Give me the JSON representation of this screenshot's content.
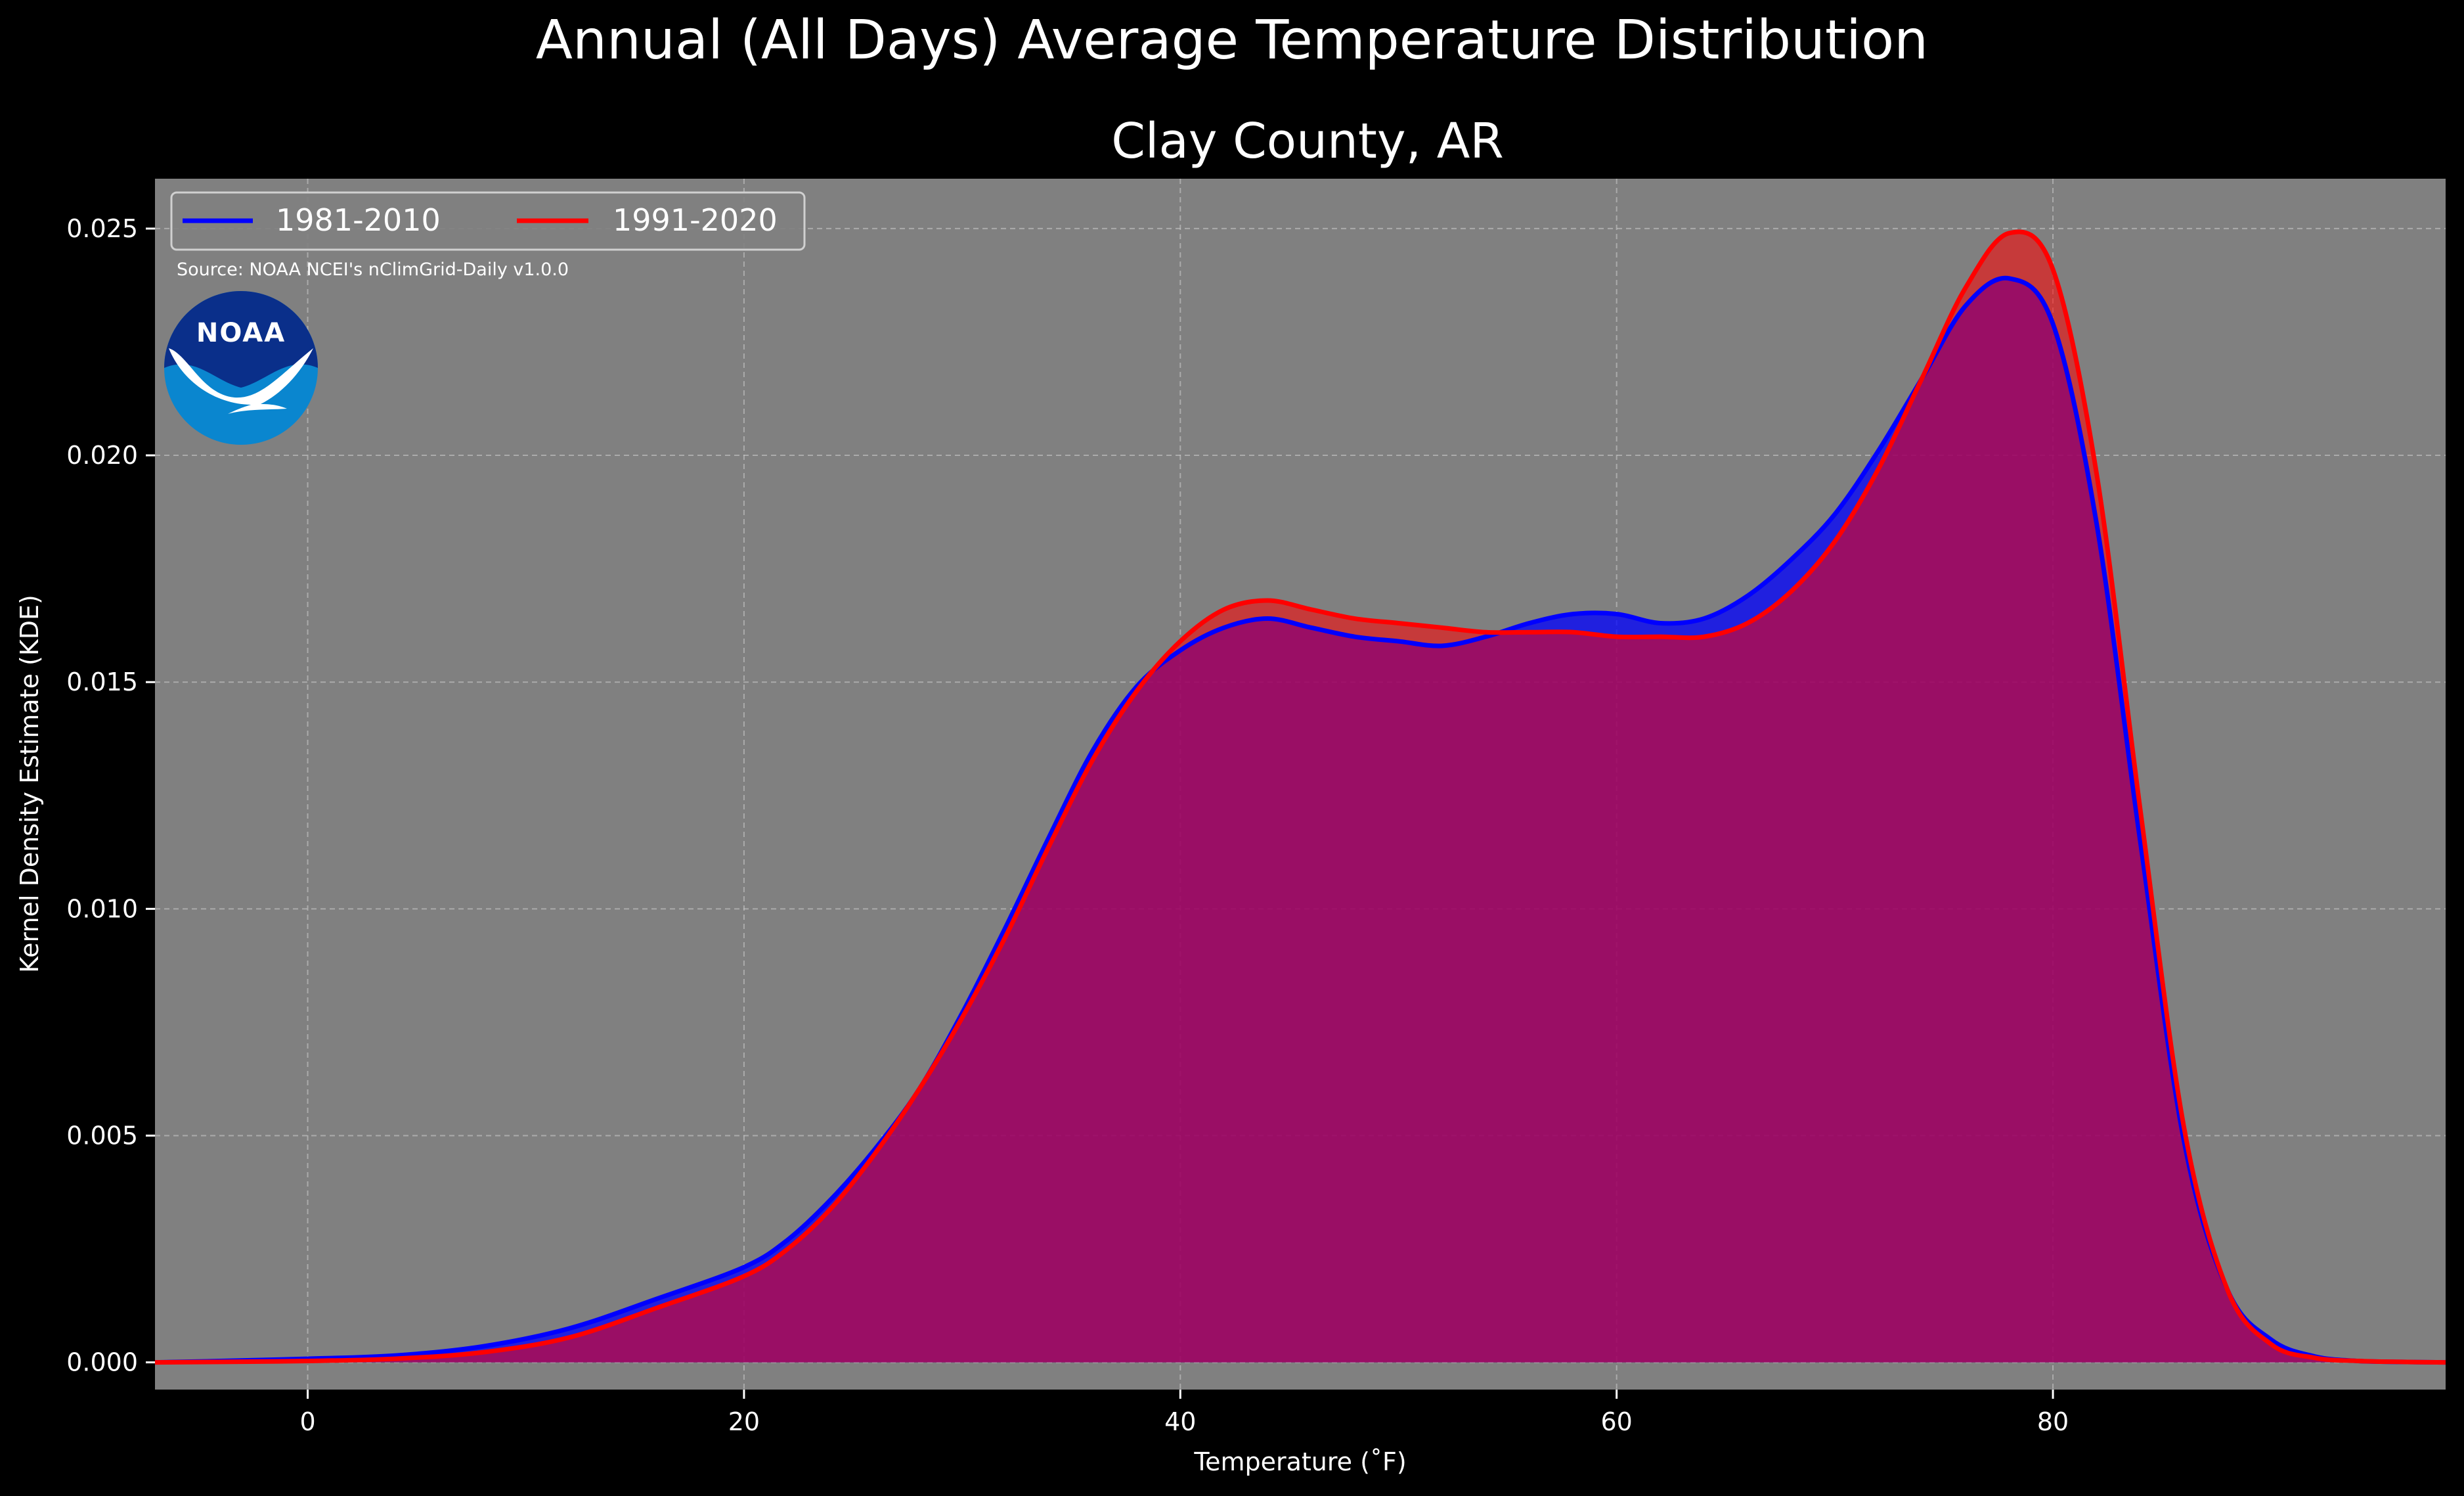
{
  "figure": {
    "suptitle": "Annual (All Days) Average Temperature Distribution",
    "subtitle": "Clay County, AR",
    "source_note": "Source: NOAA NCEI's nClimGrid-Daily v1.0.0",
    "logo_text": "NOAA"
  },
  "colors": {
    "background": "#000000",
    "plot_background": "#808080",
    "series_1981_2010": "#0000ff",
    "series_1991_2020": "#ff0000",
    "overlap_fill": "#9e1f5c",
    "logo_dark_blue": "#0a2f8a",
    "logo_light_blue": "#0a86cf"
  },
  "chart_data": {
    "type": "area",
    "title": "Clay County, AR",
    "xlabel": "Temperature ($^\\circ$F)",
    "xlabel_display": "Temperature (˚F)",
    "ylabel": "Kernel Density Estimate (KDE)",
    "xlim": [
      -7,
      98
    ],
    "ylim": [
      -0.0006,
      0.0261
    ],
    "xticks": [
      0,
      20,
      40,
      60,
      80
    ],
    "yticks": [
      0.0,
      0.005,
      0.01,
      0.015,
      0.02,
      0.025
    ],
    "ytick_labels": [
      "0.000",
      "0.005",
      "0.010",
      "0.015",
      "0.020",
      "0.025"
    ],
    "grid": true,
    "legend_position": "top-left",
    "series": [
      {
        "name": "1981-2010",
        "color": "#0000ff",
        "x": [
          -7,
          -4,
          0,
          4,
          8,
          12,
          16,
          20,
          22,
          24,
          26,
          28,
          30,
          32,
          34,
          36,
          38,
          40,
          42,
          44,
          46,
          48,
          50,
          52,
          54,
          56,
          58,
          60,
          62,
          64,
          66,
          68,
          70,
          72,
          74,
          76,
          78,
          80,
          82,
          84,
          86,
          88,
          90,
          92,
          94,
          96,
          98
        ],
        "y": [
          0.0,
          3e-05,
          8e-05,
          0.00015,
          0.00035,
          0.00075,
          0.0014,
          0.0021,
          0.0027,
          0.0036,
          0.0047,
          0.006,
          0.0077,
          0.0096,
          0.0116,
          0.0135,
          0.0149,
          0.0157,
          0.0162,
          0.0164,
          0.0162,
          0.016,
          0.0159,
          0.0158,
          0.016,
          0.0163,
          0.0165,
          0.0165,
          0.0163,
          0.0164,
          0.0169,
          0.0177,
          0.0187,
          0.0201,
          0.0217,
          0.0233,
          0.0239,
          0.0229,
          0.0185,
          0.0115,
          0.0049,
          0.0016,
          0.0005,
          0.00013,
          3e-05,
          1e-05,
          0.0
        ]
      },
      {
        "name": "1991-2020",
        "color": "#ff0000",
        "x": [
          -7,
          -4,
          0,
          4,
          8,
          12,
          16,
          20,
          22,
          24,
          26,
          28,
          30,
          32,
          34,
          36,
          38,
          40,
          42,
          44,
          46,
          48,
          50,
          52,
          54,
          56,
          58,
          60,
          62,
          64,
          66,
          68,
          70,
          72,
          74,
          76,
          78,
          80,
          82,
          84,
          86,
          88,
          90,
          92,
          94,
          96,
          98
        ],
        "y": [
          0.0,
          1e-05,
          3e-05,
          8e-05,
          0.00022,
          0.00055,
          0.0012,
          0.0019,
          0.0025,
          0.0034,
          0.0046,
          0.006,
          0.0076,
          0.0094,
          0.0114,
          0.0133,
          0.0148,
          0.0159,
          0.0166,
          0.0168,
          0.0166,
          0.0164,
          0.0163,
          0.0162,
          0.0161,
          0.0161,
          0.0161,
          0.016,
          0.016,
          0.016,
          0.0163,
          0.017,
          0.0181,
          0.0197,
          0.0217,
          0.0237,
          0.0249,
          0.0241,
          0.0196,
          0.0122,
          0.0052,
          0.0016,
          0.0004,
          0.0001,
          3e-05,
          1e-05,
          0.0
        ]
      }
    ]
  }
}
